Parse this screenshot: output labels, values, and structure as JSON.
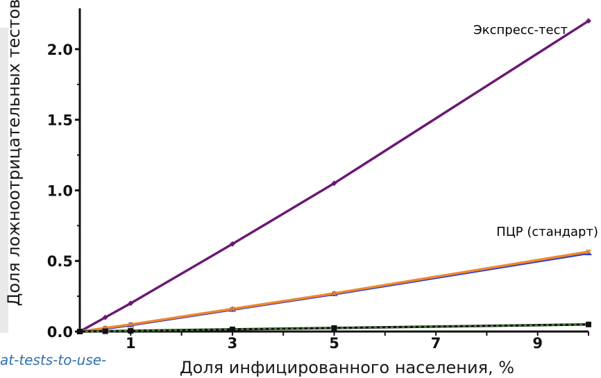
{
  "source_url_fragment": "at-tests-to-use-",
  "chart_data": {
    "type": "line",
    "title": "",
    "xlabel": "Доля инфицированного населения, %",
    "ylabel": "Доля ложноотрицательных тестов",
    "xlim": [
      0,
      10
    ],
    "ylim": [
      0,
      2.25
    ],
    "x_ticks": [
      1,
      3,
      5,
      7,
      9
    ],
    "x_tick_labels": [
      "1",
      "3",
      "5",
      "7",
      "9"
    ],
    "y_ticks": [
      0,
      0.5,
      1.0,
      1.5,
      2.0
    ],
    "y_tick_labels": [
      "0.0",
      "0.5",
      "1.0",
      "1.5",
      "2.0"
    ],
    "grid": false,
    "series": [
      {
        "name": "Экспресс-тест",
        "color": "#6a1a73",
        "marker": "diamond",
        "x": [
          0,
          0.5,
          1,
          3,
          5,
          10
        ],
        "y": [
          0,
          0.1,
          0.2,
          0.62,
          1.05,
          2.2
        ]
      },
      {
        "name": "ПЦР (стандарт)",
        "color": "#1f3bd6",
        "marker": "triangle",
        "x": [
          0,
          0.5,
          1,
          3,
          5,
          10
        ],
        "y": [
          0,
          0.02,
          0.045,
          0.155,
          0.265,
          0.555
        ]
      },
      {
        "name": "",
        "color": "#f0862a",
        "marker": "x",
        "x": [
          0,
          0.5,
          1,
          3,
          5,
          10
        ],
        "y": [
          0,
          0.025,
          0.05,
          0.16,
          0.27,
          0.565
        ]
      },
      {
        "name": "",
        "color": "#111111",
        "marker": "square",
        "x": [
          0,
          0.5,
          1,
          3,
          5,
          10
        ],
        "y": [
          0,
          0.002,
          0.005,
          0.015,
          0.025,
          0.05
        ]
      },
      {
        "name": "",
        "color": "#3a8a2a",
        "marker": "none",
        "dash": true,
        "x": [
          0,
          0.5,
          1,
          3,
          5,
          10
        ],
        "y": [
          0,
          0.002,
          0.005,
          0.015,
          0.025,
          0.05
        ]
      }
    ],
    "series_labels": [
      {
        "text": "Экспресс-тест",
        "color": "#6a1a73"
      },
      {
        "text": "ПЦР (стандарт)",
        "color": "#1f3bd6"
      }
    ]
  }
}
